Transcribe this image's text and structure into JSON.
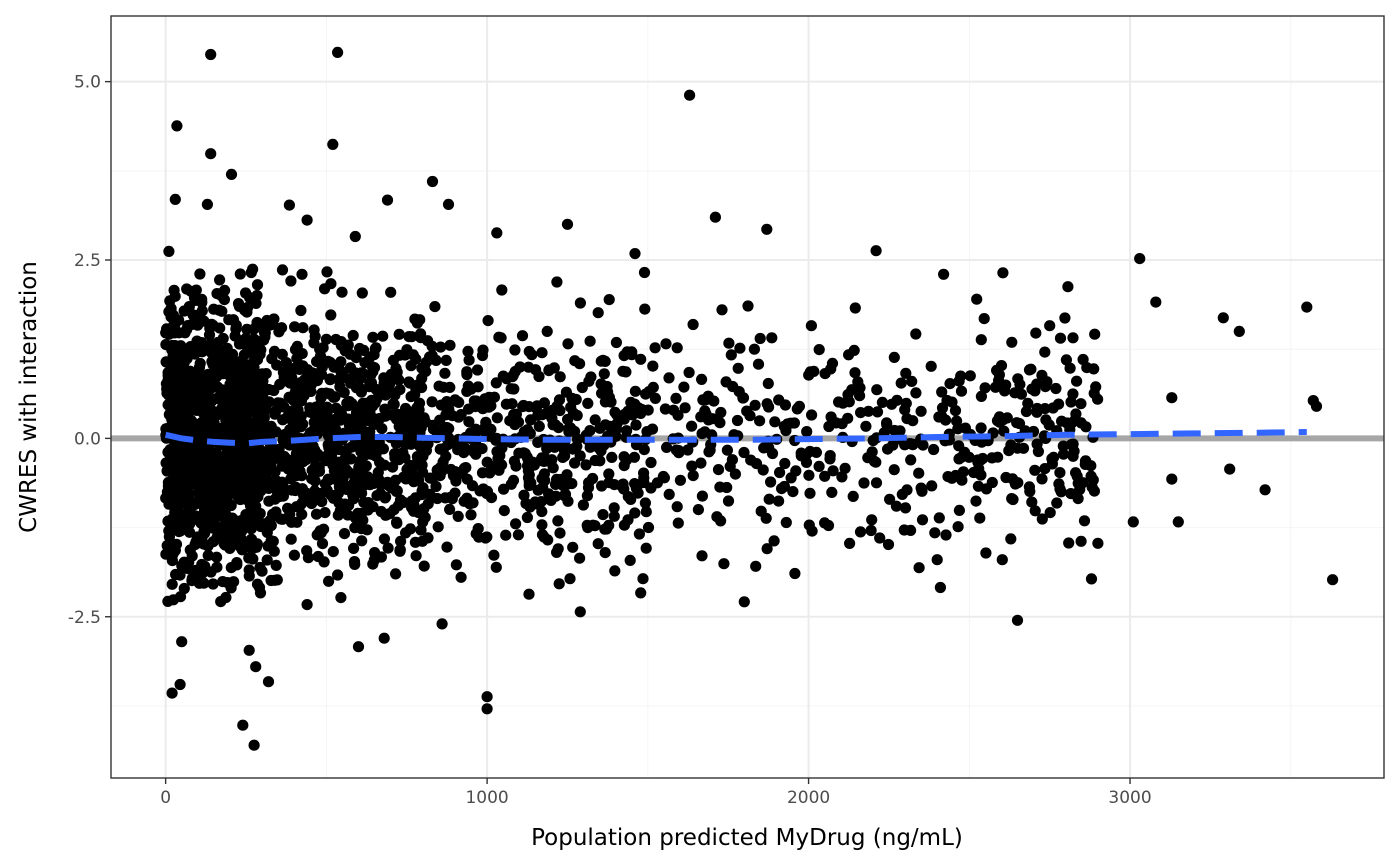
{
  "chart_data": {
    "type": "scatter",
    "title": "",
    "xlabel": "Population predicted MyDrug (ng/mL)",
    "ylabel": "CWRES with interaction",
    "xlim": [
      -170,
      3790
    ],
    "ylim": [
      -4.76,
      5.92
    ],
    "x_ticks": [
      0,
      1000,
      2000,
      3000
    ],
    "x_tick_labels": [
      "0",
      "1000",
      "2000",
      "3000"
    ],
    "y_ticks": [
      -2.5,
      0,
      2.5,
      5
    ],
    "y_tick_labels": [
      "-2.5",
      "0.0",
      "2.5",
      "5.0"
    ],
    "grid": true,
    "legend": "none",
    "colors": {
      "points": "#000000",
      "reference_line": "#a6a6a6",
      "smooth_line": "#3366ff",
      "grid_major": "#ebebeb",
      "grid_minor": "#f4f4f4",
      "panel_border": "#333333"
    },
    "reference_line": {
      "y": 0
    },
    "smooth": {
      "x": [
        0,
        50,
        100,
        150,
        200,
        250,
        300,
        400,
        500,
        600,
        700,
        800,
        900,
        1000,
        1200,
        1400,
        1600,
        1800,
        2000,
        2200,
        2400,
        2600,
        2800,
        3000,
        3200,
        3400,
        3550
      ],
      "y": [
        0.05,
        0.0,
        -0.03,
        -0.05,
        -0.06,
        -0.07,
        -0.05,
        -0.03,
        0.0,
        0.02,
        0.02,
        0.01,
        0.0,
        -0.01,
        -0.02,
        -0.02,
        -0.02,
        -0.02,
        -0.01,
        0.0,
        0.02,
        0.03,
        0.05,
        0.06,
        0.07,
        0.08,
        0.09
      ]
    },
    "outliers": [
      [
        140,
        5.38
      ],
      [
        535,
        5.41
      ],
      [
        1630,
        4.81
      ],
      [
        35,
        4.38
      ],
      [
        520,
        4.12
      ],
      [
        140,
        3.99
      ],
      [
        205,
        3.7
      ],
      [
        830,
        3.6
      ],
      [
        30,
        3.35
      ],
      [
        690,
        3.34
      ],
      [
        130,
        3.28
      ],
      [
        880,
        3.28
      ],
      [
        385,
        3.27
      ],
      [
        440,
        3.06
      ],
      [
        1710,
        3.1
      ],
      [
        1870,
        2.93
      ],
      [
        1250,
        3.0
      ],
      [
        1030,
        2.88
      ],
      [
        590,
        2.83
      ],
      [
        10,
        2.62
      ],
      [
        1460,
        2.59
      ],
      [
        3030,
        2.52
      ],
      [
        2210,
        2.63
      ],
      [
        2420,
        2.3
      ],
      [
        3080,
        1.91
      ],
      [
        2890,
        1.46
      ],
      [
        3290,
        1.69
      ],
      [
        3340,
        1.5
      ],
      [
        3550,
        1.84
      ],
      [
        2750,
        1.58
      ],
      [
        2600,
        1.02
      ],
      [
        3130,
        0.57
      ],
      [
        3570,
        0.53
      ],
      [
        3580,
        0.45
      ],
      [
        3310,
        -0.43
      ],
      [
        3130,
        -0.57
      ],
      [
        3150,
        -1.17
      ],
      [
        3010,
        -1.17
      ],
      [
        2900,
        -1.47
      ],
      [
        3420,
        -0.72
      ],
      [
        3630,
        -1.98
      ],
      [
        2880,
        -1.97
      ],
      [
        2650,
        -2.55
      ],
      [
        2410,
        -2.09
      ],
      [
        1800,
        -2.29
      ],
      [
        1290,
        -2.43
      ],
      [
        1000,
        -3.62
      ],
      [
        1000,
        -3.79
      ],
      [
        20,
        -3.57
      ],
      [
        45,
        -3.45
      ],
      [
        50,
        -2.85
      ],
      [
        320,
        -3.41
      ],
      [
        260,
        -2.97
      ],
      [
        280,
        -3.2
      ],
      [
        240,
        -4.02
      ],
      [
        275,
        -4.3
      ],
      [
        860,
        -2.6
      ],
      [
        600,
        -2.92
      ],
      [
        680,
        -2.8
      ],
      [
        440,
        -2.33
      ]
    ],
    "cloud_seed": 20240517,
    "cloud_count": 2600
  }
}
